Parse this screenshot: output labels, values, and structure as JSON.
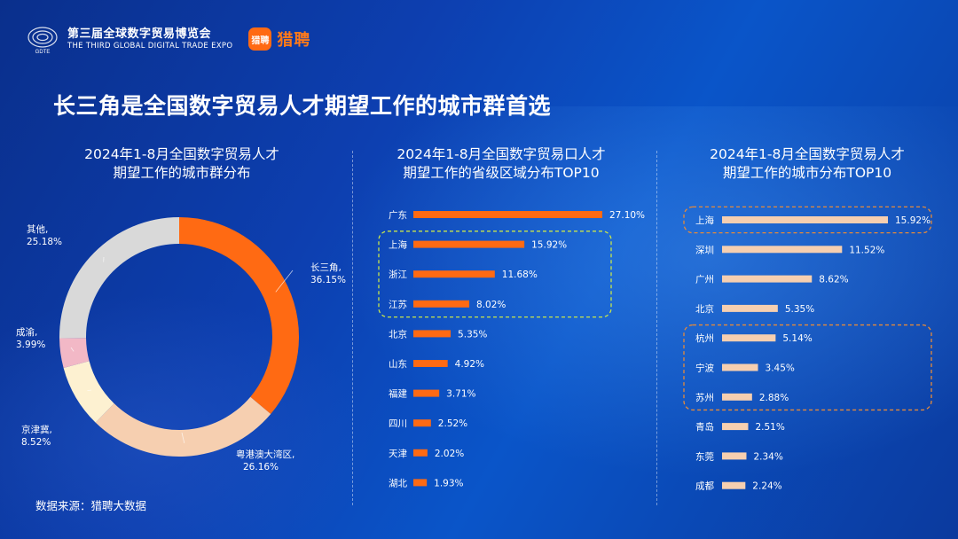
{
  "header": {
    "expo_logo_text": "GDTE",
    "expo_name_cn": "第三届全球数字贸易博览会",
    "expo_name_en": "THE THIRD GLOBAL DIGITAL TRADE EXPO",
    "liepin_logo_text": "猎聘",
    "liepin_name": "猎聘"
  },
  "headline": "长三角是全国数字贸易人才期望工作的城市群首选",
  "source": "数据来源：猎聘大数据",
  "colors": {
    "orange": "#ff6a13",
    "peach": "#f6cfb0",
    "cream": "#fdf1d1",
    "pink": "#f2b8c6",
    "gray": "#d9d9d9",
    "green_hl": "#c9e64a",
    "orange_hl": "#e58a3a"
  },
  "chart_data": [
    {
      "type": "pie",
      "subtitle_line1": "2024年1-8月全国数字贸易人才",
      "subtitle_line2": "期望工作的城市群分布",
      "slices": [
        {
          "name": "长三角,",
          "value": 36.15,
          "label": "36.15%",
          "color": "#ff6a13"
        },
        {
          "name": "粤港澳大湾区,",
          "value": 26.16,
          "label": "26.16%",
          "color": "#f6cfb0"
        },
        {
          "name": "京津冀,",
          "value": 8.52,
          "label": "8.52%",
          "color": "#fdf1d1"
        },
        {
          "name": "成渝,",
          "value": 3.99,
          "label": "3.99%",
          "color": "#f2b8c6"
        },
        {
          "name": "其他,",
          "value": 25.18,
          "label": "25.18%",
          "color": "#d9d9d9"
        }
      ]
    },
    {
      "type": "bar",
      "orientation": "horizontal",
      "subtitle_line1": "2024年1-8月全国数字贸易口人才",
      "subtitle_line2": "期望工作的省级区域分布TOP10",
      "categories": [
        "广东",
        "上海",
        "浙江",
        "江苏",
        "北京",
        "山东",
        "福建",
        "四川",
        "天津",
        "湖北"
      ],
      "values": [
        27.1,
        15.92,
        11.68,
        8.02,
        5.35,
        4.92,
        3.71,
        2.52,
        2.02,
        1.93
      ],
      "labels": [
        "27.10%",
        "15.92%",
        "11.68%",
        "8.02%",
        "5.35%",
        "4.92%",
        "3.71%",
        "2.52%",
        "2.02%",
        "1.93%"
      ],
      "bar_color": "#ff6a13",
      "highlight": {
        "from": "上海",
        "to": "江苏",
        "color": "#c9e64a"
      }
    },
    {
      "type": "bar",
      "orientation": "horizontal",
      "subtitle_line1": "2024年1-8月全国数字贸易人才",
      "subtitle_line2": "期望工作的城市分布TOP10",
      "categories": [
        "上海",
        "深圳",
        "广州",
        "北京",
        "杭州",
        "宁波",
        "苏州",
        "青岛",
        "东莞",
        "成都"
      ],
      "values": [
        15.92,
        11.52,
        8.62,
        5.35,
        5.14,
        3.45,
        2.88,
        2.51,
        2.34,
        2.24
      ],
      "labels": [
        "15.92%",
        "11.52%",
        "8.62%",
        "5.35%",
        "5.14%",
        "3.45%",
        "2.88%",
        "2.51%",
        "2.34%",
        "2.24%"
      ],
      "bar_color": "#f6cfb0",
      "highlights": [
        {
          "from": "上海",
          "to": "上海",
          "color": "#e58a3a"
        },
        {
          "from": "杭州",
          "to": "苏州",
          "color": "#e58a3a"
        }
      ]
    }
  ]
}
